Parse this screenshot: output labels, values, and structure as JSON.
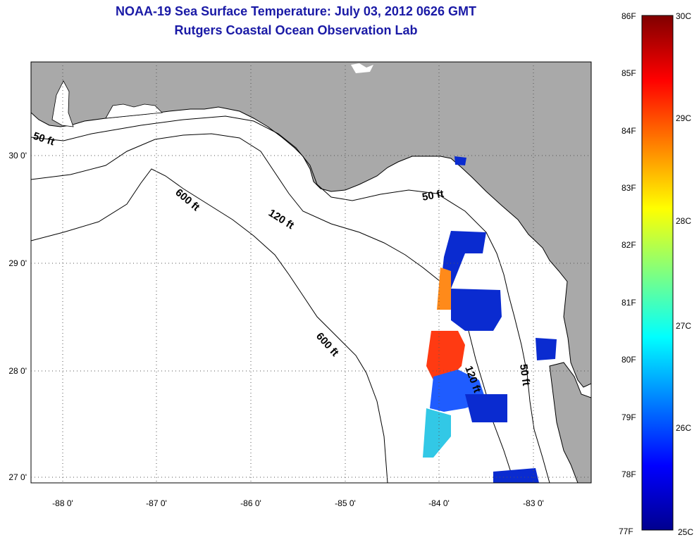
{
  "title_line1": "NOAA-19 Sea Surface Temperature:  July 03, 2012 0626 GMT",
  "title_line2": "Rutgers Coastal Ocean Observation Lab",
  "colors": {
    "land": "#a9a9a9",
    "water": "#ffffff",
    "title": "#1a1aa6",
    "grid": "#555555"
  },
  "map_axes": {
    "lon_ticks": [
      "-88 0'",
      "-87 0'",
      "-86 0'",
      "-85 0'",
      "-84 0'",
      "-83 0'"
    ],
    "lat_ticks": [
      "30 0'",
      "29 0'",
      "28 0'",
      "27 0'"
    ]
  },
  "depth_labels": {
    "a": "50 ft",
    "b": "600 ft",
    "c": "120 ft",
    "d": "50 ft",
    "e": "600 ft",
    "f": "120 ft",
    "g": "50 ft"
  },
  "colorbar": {
    "fahrenheit": [
      "86F",
      "85F",
      "84F",
      "83F",
      "82F",
      "81F",
      "80F",
      "79F",
      "78F",
      "77F"
    ],
    "celsius": [
      "30C",
      "29C",
      "28C",
      "27C",
      "26C",
      "25C"
    ],
    "min_c": 25,
    "max_c": 30
  }
}
